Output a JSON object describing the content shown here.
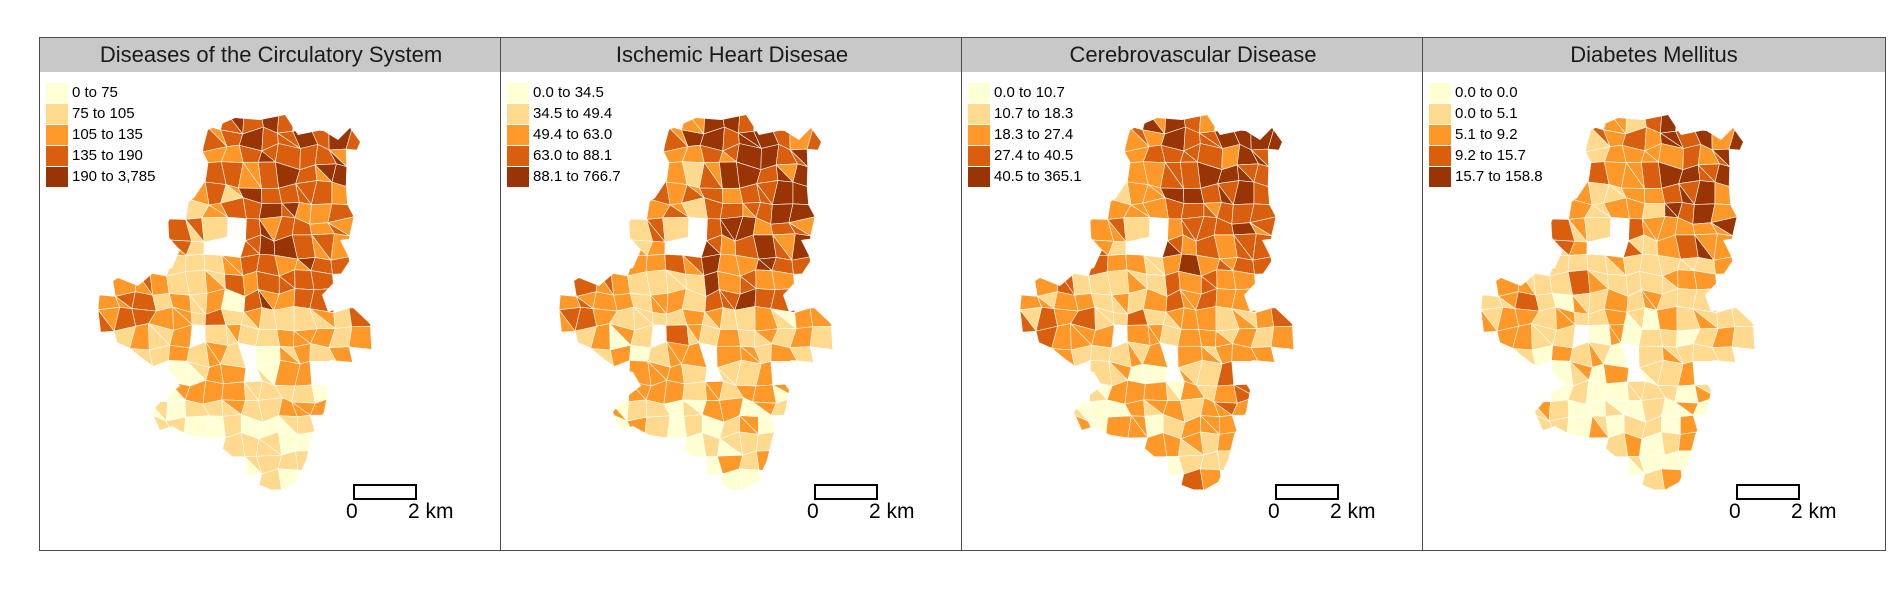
{
  "panels": [
    {
      "title": "Diseases of the Circulatory System",
      "legend": [
        {
          "label": "0 to 75",
          "color": "#ffffd4"
        },
        {
          "label": "75 to 105",
          "color": "#fed98e"
        },
        {
          "label": "105 to 135",
          "color": "#fe9929"
        },
        {
          "label": "135 to 190",
          "color": "#d95f0e"
        },
        {
          "label": "190 to 3,785",
          "color": "#993404"
        }
      ],
      "scale": {
        "start": "0",
        "end": "2 km"
      }
    },
    {
      "title": "Ischemic Heart Disesae",
      "legend": [
        {
          "label": "0.0 to 34.5",
          "color": "#ffffd4"
        },
        {
          "label": "34.5 to 49.4",
          "color": "#fed98e"
        },
        {
          "label": "49.4 to 63.0",
          "color": "#fe9929"
        },
        {
          "label": "63.0 to 88.1",
          "color": "#d95f0e"
        },
        {
          "label": "88.1 to 766.7",
          "color": "#993404"
        }
      ],
      "scale": {
        "start": "0",
        "end": "2 km"
      }
    },
    {
      "title": "Cerebrovascular Disease",
      "legend": [
        {
          "label": "0.0 to 10.7",
          "color": "#ffffd4"
        },
        {
          "label": "10.7 to 18.3",
          "color": "#fed98e"
        },
        {
          "label": "18.3 to 27.4",
          "color": "#fe9929"
        },
        {
          "label": "27.4 to 40.5",
          "color": "#d95f0e"
        },
        {
          "label": "40.5 to 365.1",
          "color": "#993404"
        }
      ],
      "scale": {
        "start": "0",
        "end": "2 km"
      }
    },
    {
      "title": "Diabetes Mellitus",
      "legend": [
        {
          "label": "0.0 to 0.0",
          "color": "#ffffd4"
        },
        {
          "label": "0.0 to 5.1",
          "color": "#fed98e"
        },
        {
          "label": "5.1 to 9.2",
          "color": "#fe9929"
        },
        {
          "label": "9.2 to 15.7",
          "color": "#d95f0e"
        },
        {
          "label": "15.7 to 158.8",
          "color": "#993404"
        }
      ],
      "scale": {
        "start": "0",
        "end": "2 km"
      }
    }
  ],
  "frame_color": "#4d4d4d",
  "header_fill": "#c8c8c8",
  "border_color": "#ffffff"
}
